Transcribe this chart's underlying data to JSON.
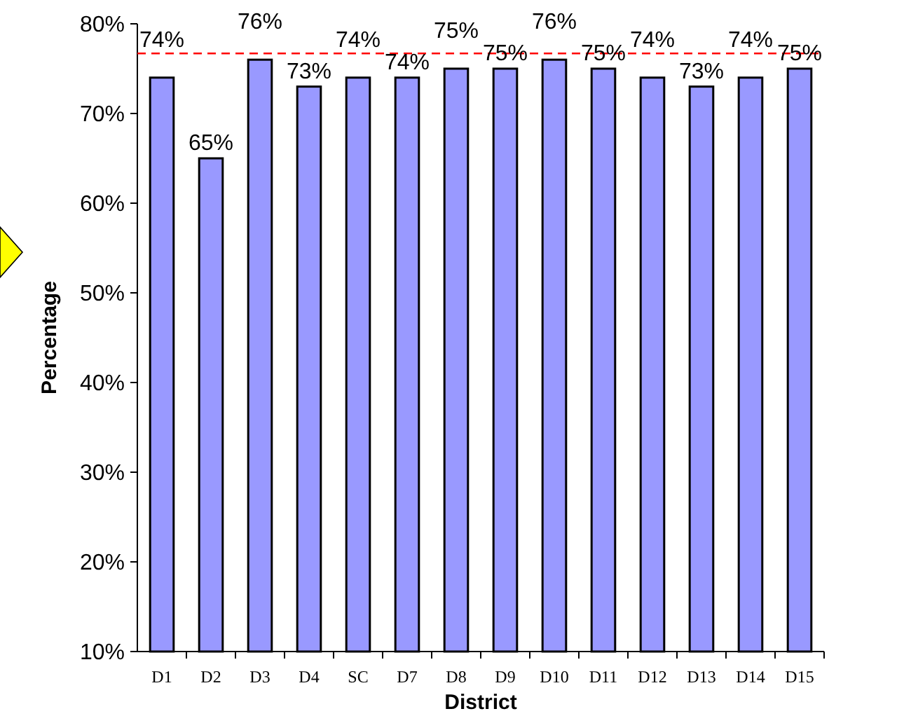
{
  "chart_data": {
    "type": "bar",
    "xlabel": "District",
    "ylabel": "Percentage",
    "categories": [
      "D1",
      "D2",
      "D3",
      "D4",
      "SC",
      "D7",
      "D8",
      "D9",
      "D10",
      "D11",
      "D12",
      "D13",
      "D14",
      "D15"
    ],
    "values": [
      74,
      65,
      76,
      73,
      74,
      74,
      75,
      75,
      76,
      75,
      74,
      73,
      74,
      75
    ],
    "value_labels": [
      "74%",
      "65%",
      "76%",
      "73%",
      "74%",
      "74%",
      "75%",
      "75%",
      "76%",
      "75%",
      "74%",
      "73%",
      "74%",
      "75%"
    ],
    "color": "#9999ff",
    "ylim": [
      10,
      80
    ],
    "yticks": [
      {
        "value": 10,
        "label": "10%"
      },
      {
        "value": 20,
        "label": "20%"
      },
      {
        "value": 30,
        "label": "30%"
      },
      {
        "value": 40,
        "label": "40%"
      },
      {
        "value": 50,
        "label": "50%"
      },
      {
        "value": 60,
        "label": "60%"
      },
      {
        "value": 70,
        "label": "70%"
      },
      {
        "value": 80,
        "label": "80%"
      }
    ],
    "ref_lines": [
      {
        "axis": "y",
        "value": 76.7,
        "color": "#ff0000",
        "line_style": "dashed"
      }
    ],
    "grid": false
  }
}
